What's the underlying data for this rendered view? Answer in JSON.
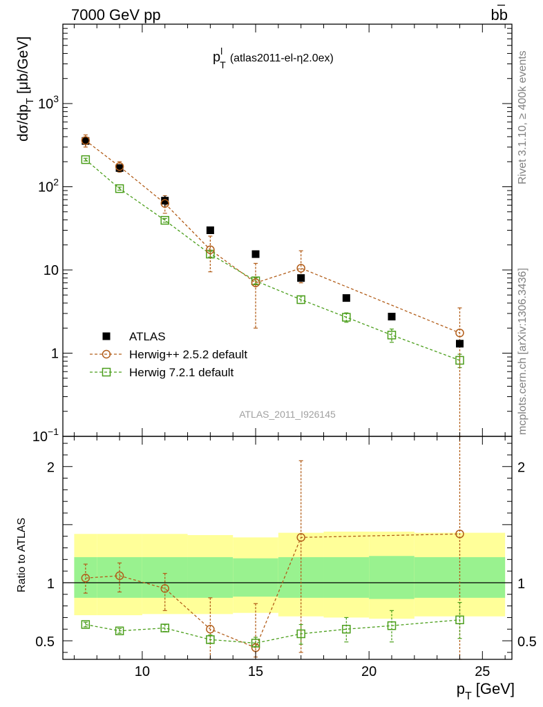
{
  "header": {
    "left": "7000 GeV pp",
    "right": "bb̄"
  },
  "side_labels": {
    "rivet": "Rivet 3.1.10, ≥ 400k events",
    "mcplots": "mcplots.cern.ch [arXiv:1306.3436]"
  },
  "watermark": "ATLAS_2011_I926145",
  "chart_data": [
    {
      "type": "scatter",
      "panel": "main",
      "title": "p_T^l (atlas2011-el-η2.0ex)",
      "ylabel": "dσ/dp_T [μb/GeV]",
      "xlim": [
        6.5,
        26.3
      ],
      "ylim": [
        0.1,
        9000
      ],
      "yscale": "log",
      "y_tick_labels": [
        "10⁻¹",
        "1",
        "10",
        "10²",
        "10³"
      ],
      "x": [
        7.5,
        9,
        11,
        13,
        15,
        17,
        19,
        21,
        24
      ],
      "legend_position": "lower-left",
      "series": [
        {
          "name": "ATLAS",
          "color": "#000000",
          "marker": "filled-square",
          "values": [
            355,
            168,
            68,
            30,
            15.5,
            8.0,
            4.6,
            2.75,
            1.3
          ],
          "errors": [
            40,
            18,
            10,
            0,
            0,
            0,
            0,
            0,
            0
          ]
        },
        {
          "name": "Herwig++ 2.5.2 default",
          "color": "#b25d19",
          "marker": "open-circle",
          "values": [
            360,
            175,
            63,
            17.5,
            7.0,
            10.5,
            0,
            0,
            1.75
          ],
          "errors_low": [
            60,
            25,
            15,
            8,
            5,
            3.5,
            0,
            0,
            1.75
          ],
          "errors_high": [
            60,
            25,
            15,
            8,
            5,
            6.5,
            0,
            0,
            1.75
          ],
          "draw_point": [
            true,
            true,
            true,
            true,
            true,
            true,
            false,
            false,
            true
          ]
        },
        {
          "name": "Herwig 7.2.1 default",
          "color": "#4a9e1a",
          "marker": "open-square",
          "values": [
            212,
            95,
            39.5,
            15.5,
            7.4,
            4.4,
            2.7,
            1.65,
            0.82
          ],
          "errors": [
            8,
            4,
            2,
            1.2,
            0.6,
            0.45,
            0.35,
            0.3,
            0.15
          ]
        }
      ]
    },
    {
      "type": "scatter",
      "panel": "ratio",
      "ylabel": "Ratio to ATLAS",
      "xlabel": "p_T [GeV]",
      "xlim": [
        6.5,
        26.3
      ],
      "ylim": [
        0.34,
        2.26
      ],
      "x_ticks": [
        10,
        15,
        20,
        25
      ],
      "y_ticks": [
        0.5,
        1,
        2
      ],
      "x": [
        7.5,
        9,
        11,
        13,
        15,
        17,
        19,
        21,
        24
      ],
      "bins": [
        [
          6.5,
          8
        ],
        [
          8,
          10
        ],
        [
          10,
          12
        ],
        [
          12,
          14
        ],
        [
          14,
          16
        ],
        [
          16,
          18
        ],
        [
          18,
          20
        ],
        [
          20,
          22
        ],
        [
          22,
          26
        ]
      ],
      "band_inner": [
        [
          0.87,
          1.22
        ],
        [
          0.87,
          1.22
        ],
        [
          0.87,
          1.22
        ],
        [
          0.87,
          1.22
        ],
        [
          0.88,
          1.21
        ],
        [
          0.87,
          1.22
        ],
        [
          0.87,
          1.22
        ],
        [
          0.86,
          1.23
        ],
        [
          0.87,
          1.22
        ]
      ],
      "band_outer": [
        [
          0.72,
          1.42
        ],
        [
          0.72,
          1.42
        ],
        [
          0.73,
          1.42
        ],
        [
          0.73,
          1.41
        ],
        [
          0.74,
          1.39
        ],
        [
          0.71,
          1.43
        ],
        [
          0.7,
          1.44
        ],
        [
          0.69,
          1.44
        ],
        [
          0.71,
          1.43
        ]
      ],
      "band_colors": {
        "inner": "#99f28f",
        "outer": "#ffff99"
      },
      "series": [
        {
          "name": "Herwig++ 2.5.2 default",
          "color": "#b25d19",
          "values": [
            1.04,
            1.06,
            0.95,
            0.6,
            0.44,
            1.39,
            1.42
          ],
          "x": [
            7.5,
            9,
            11,
            13,
            15,
            17,
            24
          ],
          "err_low": [
            0.13,
            0.14,
            0.19,
            0.3,
            0.08,
            0.99,
            1.1
          ],
          "err_high": [
            0.12,
            0.11,
            0.13,
            0.27,
            0.38,
            0.66,
            1.1
          ]
        },
        {
          "name": "Herwig 7.2.1 default",
          "color": "#4a9e1a",
          "values": [
            0.64,
            0.585,
            0.61,
            0.51,
            0.48,
            0.56,
            0.6,
            0.63,
            0.68
          ],
          "err_low": [
            0.02,
            0.02,
            0.03,
            0.03,
            0.03,
            0.09,
            0.11,
            0.14,
            0.16
          ],
          "err_high": [
            0.02,
            0.02,
            0.03,
            0.04,
            0.05,
            0.08,
            0.1,
            0.13,
            0.15
          ]
        }
      ]
    }
  ]
}
